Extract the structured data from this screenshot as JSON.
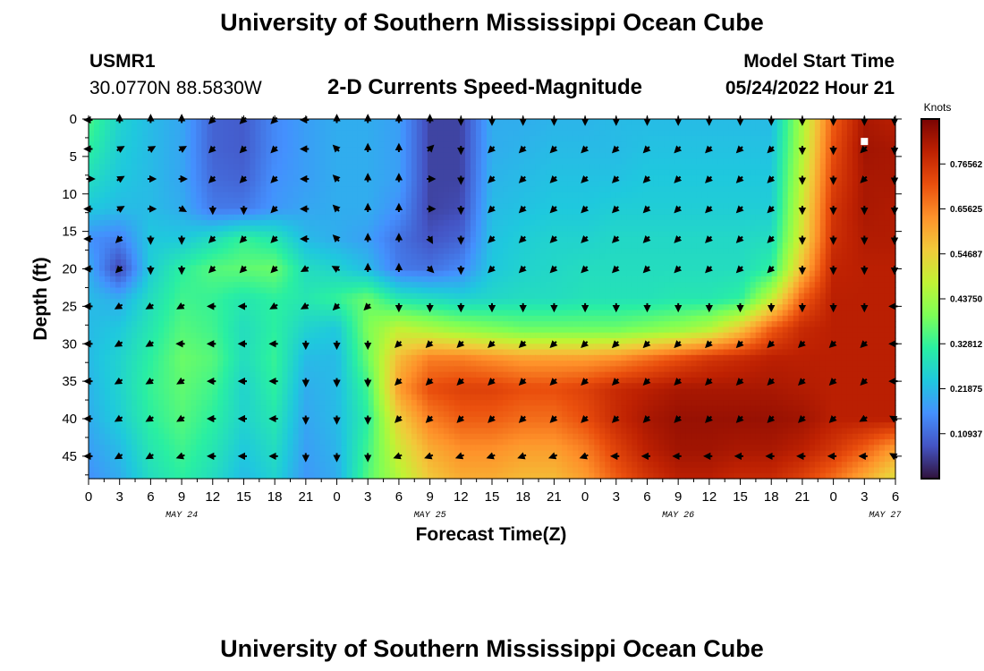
{
  "page": {
    "title": "University of Southern Mississippi Ocean Cube",
    "station_id": "USMR1",
    "station_coords": "30.0770N  88.5830W",
    "subtitle": "2-D Currents Speed-Magnitude",
    "model_label": "Model Start Time",
    "model_time": "05/24/2022 Hour 21",
    "bottom_title": "University of Southern Mississippi Ocean Cube"
  },
  "chart_data": {
    "type": "heatmap",
    "title": "2-D Currents Speed-Magnitude",
    "xlabel": "Forecast Time(Z)",
    "ylabel": "Depth (ft)",
    "x_ticks": [
      "0",
      "3",
      "6",
      "9",
      "12",
      "15",
      "18",
      "21",
      "0",
      "3",
      "6",
      "9",
      "12",
      "15",
      "18",
      "21",
      "0",
      "3",
      "6",
      "9",
      "12",
      "15",
      "18",
      "21",
      "0",
      "3",
      "6"
    ],
    "date_labels": [
      "MAY 24",
      "MAY 25",
      "MAY 26",
      "MAY 27"
    ],
    "y_ticks": [
      "0",
      "5",
      "10",
      "15",
      "20",
      "25",
      "30",
      "35",
      "40",
      "45"
    ],
    "ylim": [
      0,
      48
    ],
    "x_range_hours": [
      0,
      78
    ],
    "colorbar": {
      "label": "Knots",
      "ticks": [
        "0.76562",
        "0.65625",
        "0.54687",
        "0.43750",
        "0.32812",
        "0.21875",
        "0.10937"
      ],
      "range": [
        0,
        0.875
      ],
      "colormap": [
        "#30123b",
        "#4454c4",
        "#4490fe",
        "#1fc8de",
        "#29efa2",
        "#7dff56",
        "#c1f334",
        "#f1ca3a",
        "#fe922a",
        "#ea4f0d",
        "#be2102",
        "#7a0403"
      ]
    },
    "depths": [
      0,
      4,
      8,
      12,
      16,
      20,
      24,
      28,
      32,
      36,
      40,
      44,
      48
    ],
    "times": [
      0,
      3,
      6,
      9,
      12,
      15,
      18,
      21,
      24,
      27,
      30,
      33,
      36,
      39,
      42,
      45,
      48,
      51,
      54,
      57,
      60,
      63,
      66,
      69,
      72,
      75,
      78
    ],
    "speed_grid": [
      [
        0.35,
        0.26,
        0.22,
        0.19,
        0.1,
        0.09,
        0.15,
        0.18,
        0.2,
        0.2,
        0.18,
        0.06,
        0.06,
        0.2,
        0.2,
        0.21,
        0.21,
        0.22,
        0.22,
        0.22,
        0.22,
        0.22,
        0.22,
        0.45,
        0.7,
        0.82,
        0.8
      ],
      [
        0.32,
        0.25,
        0.22,
        0.19,
        0.1,
        0.09,
        0.15,
        0.18,
        0.2,
        0.2,
        0.18,
        0.06,
        0.06,
        0.2,
        0.21,
        0.22,
        0.22,
        0.22,
        0.23,
        0.23,
        0.23,
        0.23,
        0.23,
        0.46,
        0.72,
        0.83,
        0.82
      ],
      [
        0.28,
        0.24,
        0.22,
        0.19,
        0.11,
        0.1,
        0.16,
        0.18,
        0.2,
        0.2,
        0.18,
        0.06,
        0.06,
        0.21,
        0.22,
        0.23,
        0.23,
        0.23,
        0.24,
        0.24,
        0.24,
        0.24,
        0.24,
        0.48,
        0.74,
        0.82,
        0.82
      ],
      [
        0.24,
        0.22,
        0.22,
        0.2,
        0.13,
        0.13,
        0.17,
        0.19,
        0.2,
        0.2,
        0.16,
        0.06,
        0.07,
        0.22,
        0.23,
        0.24,
        0.24,
        0.25,
        0.25,
        0.25,
        0.25,
        0.25,
        0.25,
        0.5,
        0.76,
        0.82,
        0.81
      ],
      [
        0.16,
        0.14,
        0.24,
        0.24,
        0.28,
        0.33,
        0.3,
        0.22,
        0.2,
        0.18,
        0.12,
        0.08,
        0.1,
        0.23,
        0.25,
        0.26,
        0.26,
        0.27,
        0.27,
        0.27,
        0.27,
        0.27,
        0.28,
        0.52,
        0.77,
        0.81,
        0.81
      ],
      [
        0.2,
        0.06,
        0.25,
        0.32,
        0.36,
        0.37,
        0.38,
        0.28,
        0.26,
        0.22,
        0.13,
        0.12,
        0.15,
        0.24,
        0.26,
        0.27,
        0.28,
        0.28,
        0.28,
        0.28,
        0.28,
        0.28,
        0.32,
        0.58,
        0.79,
        0.8,
        0.8
      ],
      [
        0.22,
        0.2,
        0.28,
        0.34,
        0.33,
        0.3,
        0.32,
        0.3,
        0.33,
        0.38,
        0.3,
        0.28,
        0.26,
        0.27,
        0.28,
        0.28,
        0.29,
        0.29,
        0.29,
        0.3,
        0.3,
        0.32,
        0.48,
        0.7,
        0.8,
        0.8,
        0.8
      ],
      [
        0.22,
        0.24,
        0.3,
        0.36,
        0.34,
        0.28,
        0.32,
        0.26,
        0.24,
        0.4,
        0.48,
        0.45,
        0.42,
        0.4,
        0.38,
        0.38,
        0.38,
        0.38,
        0.4,
        0.42,
        0.46,
        0.56,
        0.7,
        0.78,
        0.8,
        0.8,
        0.8
      ],
      [
        0.22,
        0.26,
        0.32,
        0.38,
        0.36,
        0.28,
        0.33,
        0.22,
        0.22,
        0.38,
        0.58,
        0.66,
        0.66,
        0.64,
        0.62,
        0.62,
        0.62,
        0.64,
        0.68,
        0.72,
        0.76,
        0.78,
        0.8,
        0.8,
        0.8,
        0.8,
        0.8
      ],
      [
        0.21,
        0.26,
        0.33,
        0.37,
        0.34,
        0.26,
        0.32,
        0.2,
        0.22,
        0.34,
        0.62,
        0.72,
        0.74,
        0.74,
        0.72,
        0.72,
        0.74,
        0.78,
        0.8,
        0.82,
        0.82,
        0.82,
        0.82,
        0.81,
        0.8,
        0.8,
        0.8
      ],
      [
        0.2,
        0.25,
        0.32,
        0.36,
        0.32,
        0.26,
        0.3,
        0.19,
        0.22,
        0.32,
        0.55,
        0.66,
        0.7,
        0.7,
        0.68,
        0.68,
        0.72,
        0.78,
        0.82,
        0.84,
        0.84,
        0.84,
        0.84,
        0.83,
        0.8,
        0.8,
        0.8
      ],
      [
        0.18,
        0.22,
        0.3,
        0.34,
        0.3,
        0.24,
        0.28,
        0.18,
        0.21,
        0.34,
        0.5,
        0.6,
        0.64,
        0.64,
        0.62,
        0.62,
        0.66,
        0.74,
        0.8,
        0.83,
        0.83,
        0.82,
        0.82,
        0.8,
        0.76,
        0.7,
        0.62
      ],
      [
        0.16,
        0.2,
        0.28,
        0.32,
        0.28,
        0.22,
        0.26,
        0.17,
        0.2,
        0.36,
        0.46,
        0.56,
        0.6,
        0.6,
        0.58,
        0.58,
        0.62,
        0.7,
        0.76,
        0.8,
        0.8,
        0.78,
        0.78,
        0.74,
        0.68,
        0.6,
        0.52
      ]
    ],
    "vector_depths": [
      0,
      4,
      8,
      12,
      16,
      20,
      25,
      30,
      35,
      40,
      45
    ],
    "vector_times": [
      0,
      3,
      6,
      9,
      12,
      15,
      18,
      21,
      24,
      27,
      30,
      33,
      36,
      39,
      42,
      45,
      48,
      51,
      54,
      57,
      60,
      63,
      66,
      69,
      72,
      75,
      78
    ],
    "vector_dirs_deg": [
      [
        270,
        0,
        0,
        0,
        225,
        225,
        225,
        270,
        0,
        0,
        0,
        0,
        180,
        180,
        180,
        180,
        180,
        180,
        180,
        180,
        180,
        180,
        180,
        180,
        180,
        180,
        180
      ],
      [
        270,
        60,
        60,
        60,
        225,
        225,
        225,
        270,
        315,
        0,
        0,
        45,
        180,
        225,
        225,
        225,
        225,
        225,
        225,
        225,
        225,
        225,
        225,
        180,
        180,
        225,
        180
      ],
      [
        90,
        60,
        90,
        90,
        225,
        225,
        225,
        270,
        315,
        0,
        0,
        90,
        180,
        225,
        225,
        225,
        225,
        225,
        225,
        225,
        225,
        225,
        225,
        180,
        180,
        225,
        180
      ],
      [
        270,
        60,
        90,
        120,
        180,
        180,
        225,
        270,
        315,
        0,
        0,
        90,
        180,
        225,
        225,
        225,
        225,
        225,
        225,
        225,
        225,
        225,
        225,
        180,
        180,
        180,
        180
      ],
      [
        270,
        225,
        180,
        180,
        225,
        225,
        225,
        270,
        315,
        0,
        0,
        150,
        180,
        225,
        225,
        225,
        225,
        225,
        225,
        225,
        225,
        225,
        225,
        180,
        180,
        180,
        180
      ],
      [
        270,
        225,
        180,
        180,
        225,
        225,
        225,
        240,
        300,
        0,
        0,
        135,
        180,
        225,
        225,
        225,
        225,
        225,
        225,
        225,
        225,
        225,
        225,
        180,
        180,
        180,
        180
      ],
      [
        270,
        240,
        240,
        240,
        270,
        270,
        240,
        240,
        225,
        225,
        180,
        180,
        180,
        180,
        180,
        180,
        180,
        180,
        180,
        180,
        180,
        180,
        180,
        180,
        180,
        180,
        270
      ],
      [
        270,
        240,
        240,
        270,
        270,
        270,
        270,
        180,
        180,
        180,
        225,
        225,
        225,
        225,
        225,
        225,
        225,
        225,
        225,
        225,
        225,
        225,
        225,
        225,
        225,
        225,
        270
      ],
      [
        270,
        240,
        240,
        240,
        270,
        270,
        270,
        180,
        180,
        180,
        225,
        225,
        225,
        225,
        225,
        225,
        225,
        225,
        225,
        225,
        225,
        225,
        225,
        225,
        225,
        225,
        270
      ],
      [
        270,
        240,
        240,
        240,
        270,
        270,
        270,
        180,
        180,
        180,
        225,
        225,
        225,
        225,
        225,
        225,
        225,
        225,
        225,
        225,
        225,
        225,
        225,
        225,
        225,
        240,
        300
      ],
      [
        270,
        240,
        240,
        250,
        270,
        270,
        270,
        180,
        180,
        180,
        250,
        250,
        250,
        250,
        250,
        250,
        250,
        270,
        270,
        270,
        270,
        270,
        270,
        270,
        270,
        270,
        300
      ]
    ],
    "marker": {
      "time": 75,
      "depth": 3
    }
  }
}
